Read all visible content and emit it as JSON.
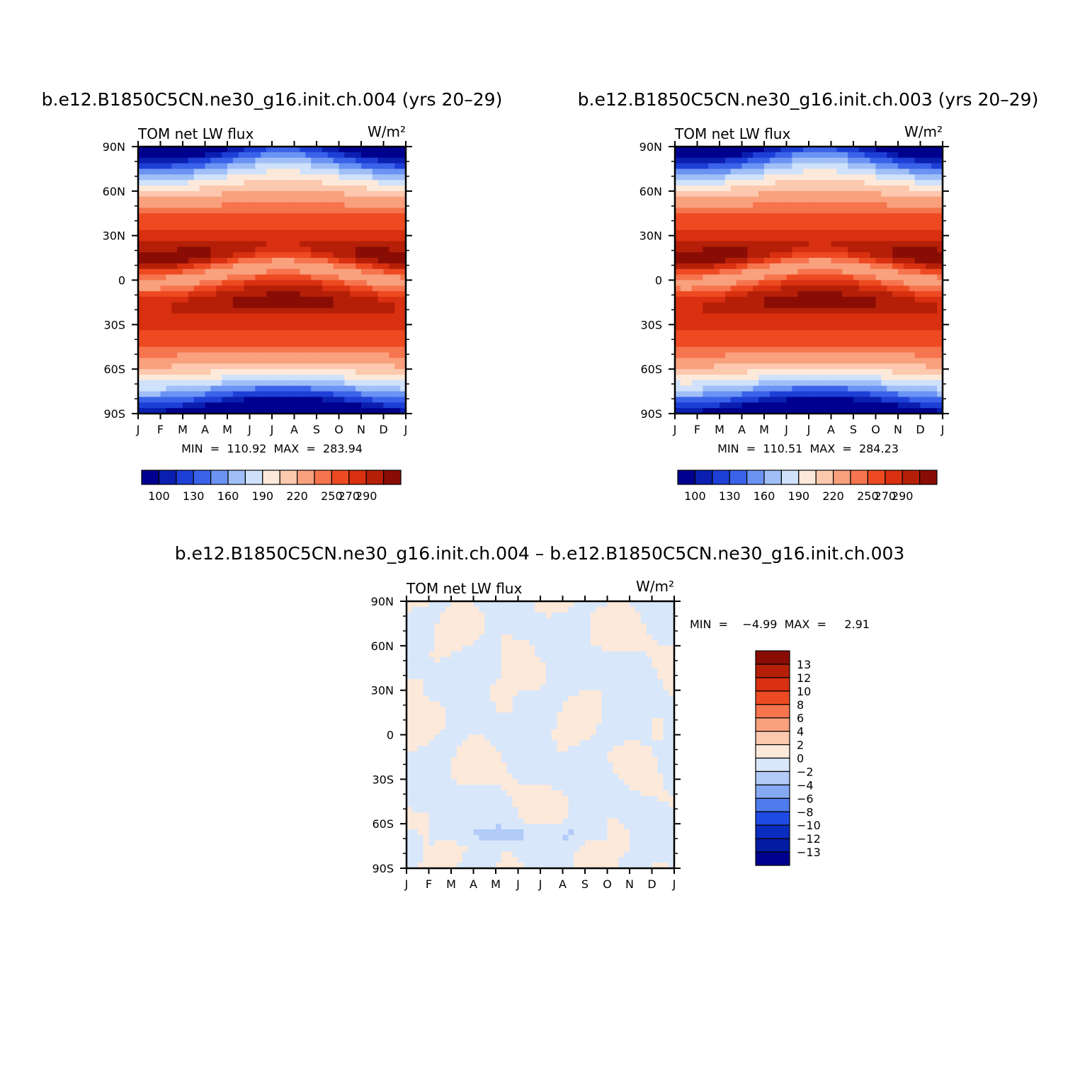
{
  "chart_data": [
    {
      "type": "heatmap",
      "title": "b.e12.B1850C5CN.ne30_g16.init.ch.004 (yrs 20-29)",
      "left_label": "TOM  net  LW  flux",
      "units": "W/m²",
      "x_ticks": [
        "J",
        "F",
        "M",
        "A",
        "M",
        "J",
        "J",
        "A",
        "S",
        "O",
        "N",
        "D",
        "J"
      ],
      "y_ticks": [
        "90N",
        "60N",
        "30N",
        "0",
        "30S",
        "60S",
        "90S"
      ],
      "stat_text": "MIN  =  110.92  MAX  =  283.94",
      "min": 110.92,
      "max": 283.94,
      "levels": [
        100,
        115,
        130,
        145,
        160,
        175,
        190,
        205,
        220,
        235,
        250,
        260,
        270,
        280,
        290
      ],
      "colorbar_labels": [
        "100",
        "130",
        "160",
        "190",
        "220",
        "250",
        "270",
        "290"
      ],
      "colors": [
        "#00008f",
        "#0a1fb0",
        "#1d3fd6",
        "#3a63ea",
        "#6b93f3",
        "#a0bff7",
        "#cfe1fb",
        "#fde9d9",
        "#fcc8ae",
        "#f9a07d",
        "#f6744e",
        "#ee4a22",
        "#d83010",
        "#b51f08",
        "#8a0d05"
      ]
    },
    {
      "type": "heatmap",
      "title": "b.e12.B1850C5CN.ne30_g16.init.ch.003 (yrs 20-29)",
      "left_label": "TOM  net  LW  flux",
      "units": "W/m²",
      "x_ticks": [
        "J",
        "F",
        "M",
        "A",
        "M",
        "J",
        "J",
        "A",
        "S",
        "O",
        "N",
        "D",
        "J"
      ],
      "y_ticks": [
        "90N",
        "60N",
        "30N",
        "0",
        "30S",
        "60S",
        "90S"
      ],
      "stat_text": "MIN  =  110.51  MAX  =  284.23",
      "min": 110.51,
      "max": 284.23,
      "levels": [
        100,
        115,
        130,
        145,
        160,
        175,
        190,
        205,
        220,
        235,
        250,
        260,
        270,
        280,
        290
      ],
      "colorbar_labels": [
        "100",
        "130",
        "160",
        "190",
        "220",
        "250",
        "270",
        "290"
      ],
      "colors": [
        "#00008f",
        "#0a1fb0",
        "#1d3fd6",
        "#3a63ea",
        "#6b93f3",
        "#a0bff7",
        "#cfe1fb",
        "#fde9d9",
        "#fcc8ae",
        "#f9a07d",
        "#f6744e",
        "#ee4a22",
        "#d83010",
        "#b51f08",
        "#8a0d05"
      ]
    },
    {
      "type": "heatmap",
      "title": "b.e12.B1850C5CN.ne30_g16.init.ch.004 - b.e12.B1850C5CN.ne30_g16.init.ch.003",
      "left_label": "TOM  net  LW  flux",
      "units": "W/m²",
      "x_ticks": [
        "J",
        "F",
        "M",
        "A",
        "M",
        "J",
        "J",
        "A",
        "S",
        "O",
        "N",
        "D",
        "J"
      ],
      "y_ticks": [
        "90N",
        "60N",
        "30N",
        "0",
        "30S",
        "60S",
        "90S"
      ],
      "stat_text": "MIN  =    -4.99  MAX  =     2.91",
      "min": -4.99,
      "max": 2.91,
      "colorbar_labels": [
        "13",
        "12",
        "10",
        "8",
        "6",
        "4",
        "2",
        "0",
        "-2",
        "-4",
        "-6",
        "-8",
        "-10",
        "-12",
        "-13"
      ],
      "colors": [
        "#8a0d05",
        "#b51f08",
        "#d83010",
        "#ee4a22",
        "#f6744e",
        "#f9a07d",
        "#fcc8ae",
        "#fde9d9",
        "#d9e7fb",
        "#b2cbf8",
        "#86a9f4",
        "#4f7cec",
        "#1e4be3",
        "#0a2dc0",
        "#031aa3",
        "#00008f"
      ]
    }
  ]
}
